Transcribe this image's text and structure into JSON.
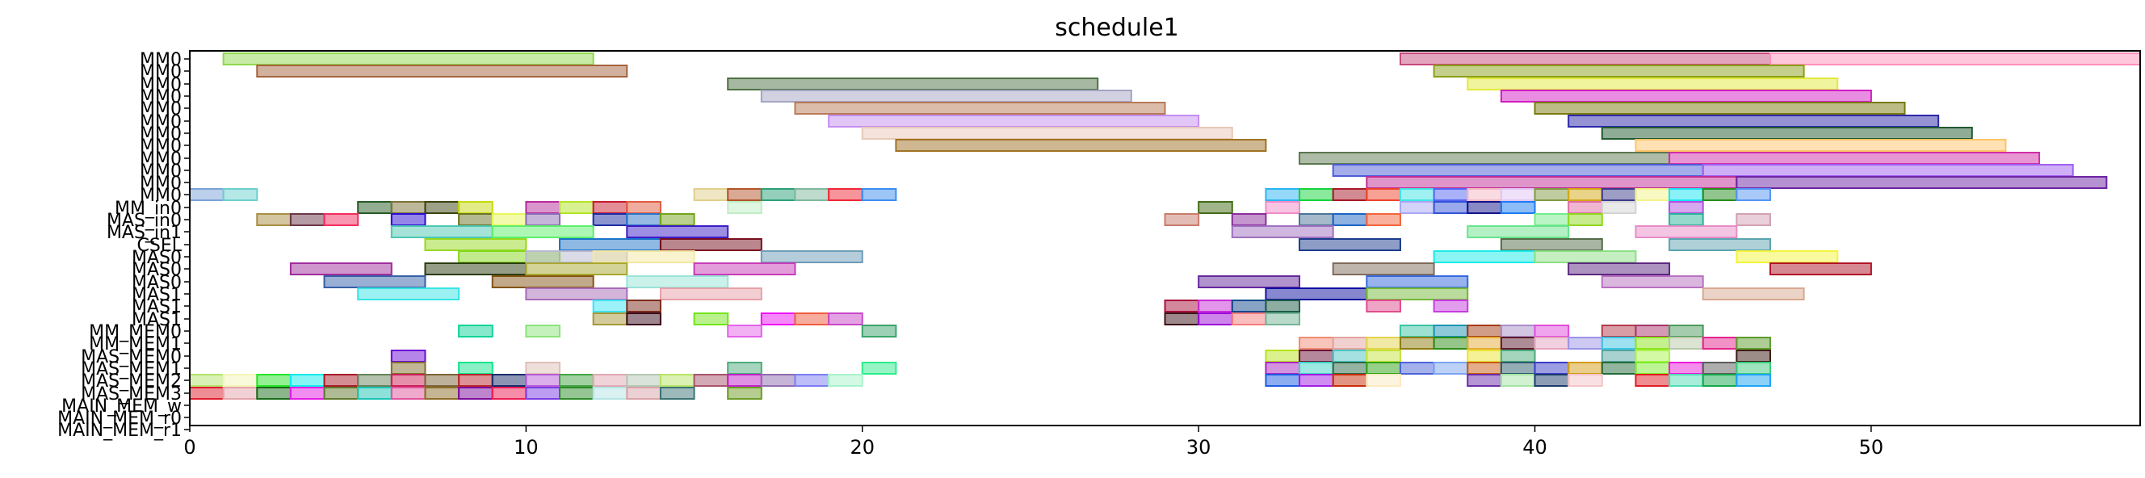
{
  "chart_data": {
    "type": "gantt",
    "title": "schedule1",
    "xlabel": "",
    "ylabel": "",
    "xlim": [
      0,
      58
    ],
    "xticks": [
      0,
      10,
      20,
      30,
      40,
      50
    ],
    "grid": false,
    "rows": [
      "MM0",
      "MM0",
      "MM0",
      "MM0",
      "MM0",
      "MM0",
      "MM0",
      "MM0",
      "MM0",
      "MM0",
      "MM0",
      "MM0",
      "MM_in0",
      "MAS_in0",
      "MAS_in1",
      "CSEL",
      "MAS0",
      "MAS0",
      "MAS0",
      "MAS1",
      "MAS1",
      "MAS1",
      "MM_MEM0",
      "MM_MEM1",
      "MAS_MEM0",
      "MAS_MEM1",
      "MAS_MEM2",
      "MAS_MEM3",
      "MAIN_MEM_w",
      "MAIN_MEM_r0",
      "MAIN_MEM_r1"
    ],
    "tasks": [
      [
        0,
        1,
        12,
        "#8fd84e"
      ],
      [
        0,
        36,
        47,
        "#c84a7e"
      ],
      [
        0,
        47,
        58,
        "#ff8fba"
      ],
      [
        1,
        2,
        13,
        "#a4643c"
      ],
      [
        1,
        37,
        48,
        "#8aa018"
      ],
      [
        2,
        16,
        27,
        "#4e7244"
      ],
      [
        2,
        38,
        49,
        "#e0ea3c"
      ],
      [
        3,
        17,
        28,
        "#a4a4c4"
      ],
      [
        3,
        39,
        50,
        "#d21cc4"
      ],
      [
        4,
        18,
        29,
        "#b87a58"
      ],
      [
        4,
        40,
        51,
        "#7a7a10"
      ],
      [
        5,
        19,
        30,
        "#c48ef0"
      ],
      [
        5,
        41,
        52,
        "#2c28a8"
      ],
      [
        6,
        20,
        31,
        "#e8c8b8"
      ],
      [
        6,
        42,
        53,
        "#205a30"
      ],
      [
        7,
        21,
        32,
        "#a07224"
      ],
      [
        7,
        43,
        54,
        "#ffc468"
      ],
      [
        8,
        33,
        44,
        "#5c7850"
      ],
      [
        8,
        44,
        55,
        "#d02ea8"
      ],
      [
        9,
        34,
        45,
        "#4e5cd8"
      ],
      [
        9,
        45,
        56,
        "#a060f0"
      ],
      [
        10,
        35,
        46,
        "#c02c94"
      ],
      [
        10,
        46,
        57,
        "#6e24a4"
      ],
      [
        11,
        0,
        1,
        "#7aa2d8"
      ],
      [
        11,
        1,
        2,
        "#6ccfd0"
      ],
      [
        11,
        15,
        16,
        "#e0cf8a"
      ],
      [
        11,
        16,
        17,
        "#b4542a"
      ],
      [
        11,
        17,
        18,
        "#2aa078"
      ],
      [
        11,
        18,
        19,
        "#7eb89c"
      ],
      [
        11,
        19,
        20,
        "#f02838"
      ],
      [
        11,
        20,
        21,
        "#3c8ef0"
      ],
      [
        11,
        32,
        33,
        "#2ab4f4"
      ],
      [
        11,
        33,
        34,
        "#14d43c"
      ],
      [
        11,
        34,
        35,
        "#a81828"
      ],
      [
        11,
        35,
        36,
        "#f0442c"
      ],
      [
        11,
        36,
        37,
        "#40e4e4"
      ],
      [
        11,
        37,
        38,
        "#5464f4"
      ],
      [
        11,
        38,
        39,
        "#f4b8c4"
      ],
      [
        11,
        39,
        40,
        "#e0c4f4"
      ],
      [
        11,
        40,
        41,
        "#809a40"
      ],
      [
        11,
        41,
        42,
        "#d4a814"
      ],
      [
        11,
        42,
        43,
        "#3c3c8c"
      ],
      [
        11,
        43,
        44,
        "#f4f488"
      ],
      [
        11,
        44,
        45,
        "#18e4f4"
      ],
      [
        11,
        45,
        46,
        "#248c1c"
      ],
      [
        11,
        46,
        47,
        "#5494f4"
      ],
      [
        12,
        5,
        6,
        "#285c28"
      ],
      [
        12,
        6,
        7,
        "#7e7238"
      ],
      [
        12,
        7,
        8,
        "#3c4410"
      ],
      [
        12,
        8,
        9,
        "#c8d810"
      ],
      [
        12,
        10,
        11,
        "#b82c9c"
      ],
      [
        12,
        11,
        12,
        "#b4e428"
      ],
      [
        12,
        12,
        13,
        "#c81c30"
      ],
      [
        12,
        13,
        14,
        "#e05c40"
      ],
      [
        12,
        16,
        17,
        "#c0eec4"
      ],
      [
        12,
        30,
        31,
        "#446c18"
      ],
      [
        12,
        32,
        33,
        "#f08cc8"
      ],
      [
        12,
        36,
        37,
        "#a8a8f4"
      ],
      [
        12,
        37,
        38,
        "#3454d8"
      ],
      [
        12,
        38,
        39,
        "#14148c"
      ],
      [
        12,
        39,
        40,
        "#1c7cf4"
      ],
      [
        12,
        41,
        42,
        "#e06ca4"
      ],
      [
        12,
        42,
        43,
        "#d4d4d4"
      ],
      [
        12,
        44,
        45,
        "#b050e0"
      ],
      [
        13,
        2,
        3,
        "#a88e44"
      ],
      [
        13,
        3,
        4,
        "#6c3848"
      ],
      [
        13,
        4,
        5,
        "#f42c60"
      ],
      [
        13,
        6,
        7,
        "#2c0cd4"
      ],
      [
        13,
        8,
        9,
        "#6c7424"
      ],
      [
        13,
        9,
        10,
        "#e8f858"
      ],
      [
        13,
        10,
        11,
        "#8c6cb8"
      ],
      [
        13,
        12,
        13,
        "#1c2ca4"
      ],
      [
        13,
        13,
        14,
        "#2c74c8"
      ],
      [
        13,
        14,
        15,
        "#74a41c"
      ],
      [
        13,
        29,
        30,
        "#c87c6c"
      ],
      [
        13,
        31,
        32,
        "#8c2c9c"
      ],
      [
        13,
        33,
        34,
        "#4c7498"
      ],
      [
        13,
        34,
        35,
        "#1c64c4"
      ],
      [
        13,
        35,
        36,
        "#f4643c"
      ],
      [
        13,
        40,
        41,
        "#74ec8c"
      ],
      [
        13,
        41,
        42,
        "#90d820"
      ],
      [
        13,
        44,
        45,
        "#2cb49c"
      ],
      [
        13,
        46,
        47,
        "#d4a0b4"
      ],
      [
        14,
        6,
        9,
        "#4cc8b4"
      ],
      [
        14,
        9,
        12,
        "#5cf06c"
      ],
      [
        14,
        13,
        16,
        "#3c1cc8"
      ],
      [
        14,
        31,
        34,
        "#a070c0"
      ],
      [
        14,
        38,
        41,
        "#68e48c"
      ],
      [
        14,
        43,
        46,
        "#e88cc8"
      ],
      [
        15,
        7,
        10,
        "#98d820"
      ],
      [
        15,
        11,
        14,
        "#1c74c8"
      ],
      [
        15,
        14,
        17,
        "#781020"
      ],
      [
        15,
        33,
        36,
        "#1c3c8c"
      ],
      [
        15,
        39,
        42,
        "#546c48"
      ],
      [
        15,
        44,
        47,
        "#5ca4b0"
      ],
      [
        16,
        8,
        11,
        "#84d81c"
      ],
      [
        16,
        10,
        13,
        "#b8b8d0"
      ],
      [
        16,
        12,
        15,
        "#f4e8a0"
      ],
      [
        16,
        17,
        20,
        "#6c9cb8"
      ],
      [
        16,
        37,
        40,
        "#18ece8"
      ],
      [
        16,
        40,
        43,
        "#8ce084"
      ],
      [
        16,
        46,
        49,
        "#f4f43c"
      ],
      [
        17,
        3,
        6,
        "#a02c9c"
      ],
      [
        17,
        7,
        10,
        "#2c3c10"
      ],
      [
        17,
        10,
        13,
        "#a8a830"
      ],
      [
        17,
        15,
        18,
        "#c83cb8"
      ],
      [
        17,
        34,
        37,
        "#7e6c5c"
      ],
      [
        17,
        41,
        44,
        "#5c2880"
      ],
      [
        17,
        47,
        50,
        "#b01428"
      ],
      [
        18,
        4,
        7,
        "#3460a8"
      ],
      [
        18,
        9,
        12,
        "#845414"
      ],
      [
        18,
        13,
        16,
        "#98e4d8"
      ],
      [
        18,
        30,
        33,
        "#64289c"
      ],
      [
        18,
        35,
        38,
        "#3468e0"
      ],
      [
        18,
        42,
        45,
        "#b870c0"
      ],
      [
        19,
        5,
        8,
        "#38e4e4"
      ],
      [
        19,
        10,
        13,
        "#a86cb8"
      ],
      [
        19,
        14,
        17,
        "#e8a0a8"
      ],
      [
        19,
        32,
        35,
        "#1010a0"
      ],
      [
        19,
        35,
        38,
        "#74b838"
      ],
      [
        19,
        45,
        48,
        "#d8a890"
      ],
      [
        20,
        12,
        13,
        "#3ce4f4"
      ],
      [
        20,
        13,
        14,
        "#7c2c1c"
      ],
      [
        20,
        29,
        30,
        "#a8123c"
      ],
      [
        20,
        30,
        31,
        "#c82cd8"
      ],
      [
        20,
        31,
        32,
        "#14488c"
      ],
      [
        20,
        32,
        33,
        "#1c5c48"
      ],
      [
        20,
        35,
        36,
        "#e04c8c"
      ],
      [
        20,
        37,
        38,
        "#c83ce0"
      ],
      [
        21,
        12,
        13,
        "#a89838"
      ],
      [
        21,
        13,
        14,
        "#3c0c1c"
      ],
      [
        21,
        15,
        16,
        "#74e41c"
      ],
      [
        21,
        17,
        18,
        "#ec14f4"
      ],
      [
        21,
        18,
        19,
        "#f05c3c"
      ],
      [
        21,
        19,
        20,
        "#c848c8"
      ],
      [
        21,
        29,
        30,
        "#3c1418"
      ],
      [
        21,
        30,
        31,
        "#9c0cd8"
      ],
      [
        21,
        31,
        32,
        "#f47c7c"
      ],
      [
        21,
        32,
        33,
        "#74b498"
      ],
      [
        22,
        8,
        9,
        "#10d498"
      ],
      [
        22,
        10,
        11,
        "#8ce47c"
      ],
      [
        22,
        16,
        17,
        "#e464e8"
      ],
      [
        22,
        20,
        21,
        "#3ca46c"
      ],
      [
        22,
        36,
        37,
        "#3cc4a4"
      ],
      [
        22,
        37,
        38,
        "#1c94b4"
      ],
      [
        22,
        38,
        39,
        "#a43c14"
      ],
      [
        22,
        39,
        40,
        "#a88ec8"
      ],
      [
        22,
        40,
        41,
        "#e04cdc"
      ],
      [
        22,
        42,
        43,
        "#b43c4c"
      ],
      [
        22,
        43,
        44,
        "#a8346c"
      ],
      [
        22,
        44,
        45,
        "#4c9c5c"
      ],
      [
        23,
        33,
        34,
        "#f08c74"
      ],
      [
        23,
        34,
        35,
        "#e4a4a0"
      ],
      [
        23,
        35,
        36,
        "#e4d44c"
      ],
      [
        23,
        36,
        37,
        "#8c7c0c"
      ],
      [
        23,
        37,
        38,
        "#2c8c14"
      ],
      [
        23,
        38,
        39,
        "#e4ac38"
      ],
      [
        23,
        39,
        40,
        "#5c1c2c"
      ],
      [
        23,
        40,
        41,
        "#e4a4c0"
      ],
      [
        23,
        41,
        42,
        "#9c94e8"
      ],
      [
        23,
        42,
        43,
        "#3cc4e4"
      ],
      [
        23,
        43,
        44,
        "#8ce41c"
      ],
      [
        23,
        44,
        45,
        "#b8c8a8"
      ],
      [
        23,
        45,
        46,
        "#e4248c"
      ],
      [
        23,
        46,
        47,
        "#5c9c2c"
      ],
      [
        24,
        6,
        7,
        "#6c0cd4"
      ],
      [
        24,
        32,
        33,
        "#b8e41c"
      ],
      [
        24,
        33,
        34,
        "#6c1438"
      ],
      [
        24,
        34,
        35,
        "#4cc4c4"
      ],
      [
        24,
        35,
        36,
        "#c4e43c"
      ],
      [
        24,
        38,
        39,
        "#ece430"
      ],
      [
        24,
        39,
        40,
        "#4cac7c"
      ],
      [
        24,
        42,
        43,
        "#54a4a0"
      ],
      [
        24,
        43,
        44,
        "#aaf44c"
      ],
      [
        24,
        46,
        47,
        "#3c1c14"
      ],
      [
        25,
        6,
        7,
        "#847030"
      ],
      [
        25,
        8,
        9,
        "#14e48c"
      ],
      [
        25,
        10,
        11,
        "#e0c0b8"
      ],
      [
        25,
        16,
        17,
        "#4cac7c"
      ],
      [
        25,
        20,
        21,
        "#2cec8c"
      ],
      [
        25,
        32,
        33,
        "#a828c0"
      ],
      [
        25,
        33,
        34,
        "#3cd4c4"
      ],
      [
        25,
        34,
        35,
        "#2c6848"
      ],
      [
        25,
        35,
        36,
        "#30a414"
      ],
      [
        25,
        36,
        37,
        "#4c64d8"
      ],
      [
        25,
        37,
        38,
        "#7ca4f0"
      ],
      [
        25,
        38,
        39,
        "#c85c14"
      ],
      [
        25,
        39,
        40,
        "#2c5c6c"
      ],
      [
        25,
        40,
        41,
        "#3c3cc8"
      ],
      [
        25,
        41,
        42,
        "#d49c14"
      ],
      [
        25,
        42,
        43,
        "#246c3c"
      ],
      [
        25,
        43,
        44,
        "#7cec2c"
      ],
      [
        25,
        44,
        45,
        "#ec1cdc"
      ],
      [
        25,
        45,
        46,
        "#5c5c5c"
      ],
      [
        25,
        46,
        47,
        "#3ccc7c"
      ],
      [
        26,
        0,
        1,
        "#b4e46c"
      ],
      [
        26,
        1,
        2,
        "#f4f4b8"
      ],
      [
        26,
        2,
        3,
        "#28e428"
      ],
      [
        26,
        3,
        4,
        "#10ecec"
      ],
      [
        26,
        4,
        5,
        "#a81c28"
      ],
      [
        26,
        5,
        6,
        "#68845c"
      ],
      [
        26,
        6,
        7,
        "#cc2058"
      ],
      [
        26,
        7,
        8,
        "#7c6438"
      ],
      [
        26,
        8,
        9,
        "#b8242c"
      ],
      [
        26,
        9,
        10,
        "#1c2c6c"
      ],
      [
        26,
        10,
        11,
        "#b85cd8"
      ],
      [
        26,
        11,
        12,
        "#44a444"
      ],
      [
        26,
        12,
        13,
        "#e0a8b4"
      ],
      [
        26,
        13,
        14,
        "#b4c8b4"
      ],
      [
        26,
        14,
        15,
        "#b8e468"
      ],
      [
        26,
        15,
        16,
        "#a8546c"
      ],
      [
        26,
        16,
        17,
        "#c024c8"
      ],
      [
        26,
        17,
        18,
        "#906cb0"
      ],
      [
        26,
        18,
        19,
        "#7c7cf4"
      ],
      [
        26,
        19,
        20,
        "#a8f4cc"
      ],
      [
        26,
        32,
        33,
        "#1c5ce4"
      ],
      [
        26,
        33,
        34,
        "#a01ce4"
      ],
      [
        26,
        34,
        35,
        "#c82c08"
      ],
      [
        26,
        35,
        36,
        "#fceac0"
      ],
      [
        26,
        38,
        39,
        "#6c2ca8"
      ],
      [
        26,
        39,
        40,
        "#a4e4a4"
      ],
      [
        26,
        40,
        41,
        "#1c3c6c"
      ],
      [
        26,
        41,
        42,
        "#f4c4c8"
      ],
      [
        26,
        43,
        44,
        "#e01c24"
      ],
      [
        26,
        44,
        45,
        "#50dcb4"
      ],
      [
        26,
        45,
        46,
        "#14a84c"
      ],
      [
        26,
        46,
        47,
        "#1ca4f4"
      ],
      [
        27,
        0,
        1,
        "#e01c2c"
      ],
      [
        27,
        1,
        2,
        "#e4a4ac"
      ],
      [
        27,
        2,
        3,
        "#186c18"
      ],
      [
        27,
        3,
        4,
        "#e41ce4"
      ],
      [
        27,
        4,
        5,
        "#60782c"
      ],
      [
        27,
        5,
        6,
        "#1cc4b4"
      ],
      [
        27,
        6,
        7,
        "#e0549c"
      ],
      [
        27,
        7,
        8,
        "#8c6c28"
      ],
      [
        27,
        8,
        9,
        "#7c0c9c"
      ],
      [
        27,
        9,
        10,
        "#ec1c54"
      ],
      [
        27,
        10,
        11,
        "#7c3ce4"
      ],
      [
        27,
        11,
        12,
        "#2c8c28"
      ],
      [
        27,
        12,
        13,
        "#b4e4e4"
      ],
      [
        27,
        13,
        14,
        "#d8a4a8"
      ],
      [
        27,
        14,
        15,
        "#3c7474"
      ],
      [
        27,
        16,
        17,
        "#6c9c24"
      ]
    ]
  }
}
